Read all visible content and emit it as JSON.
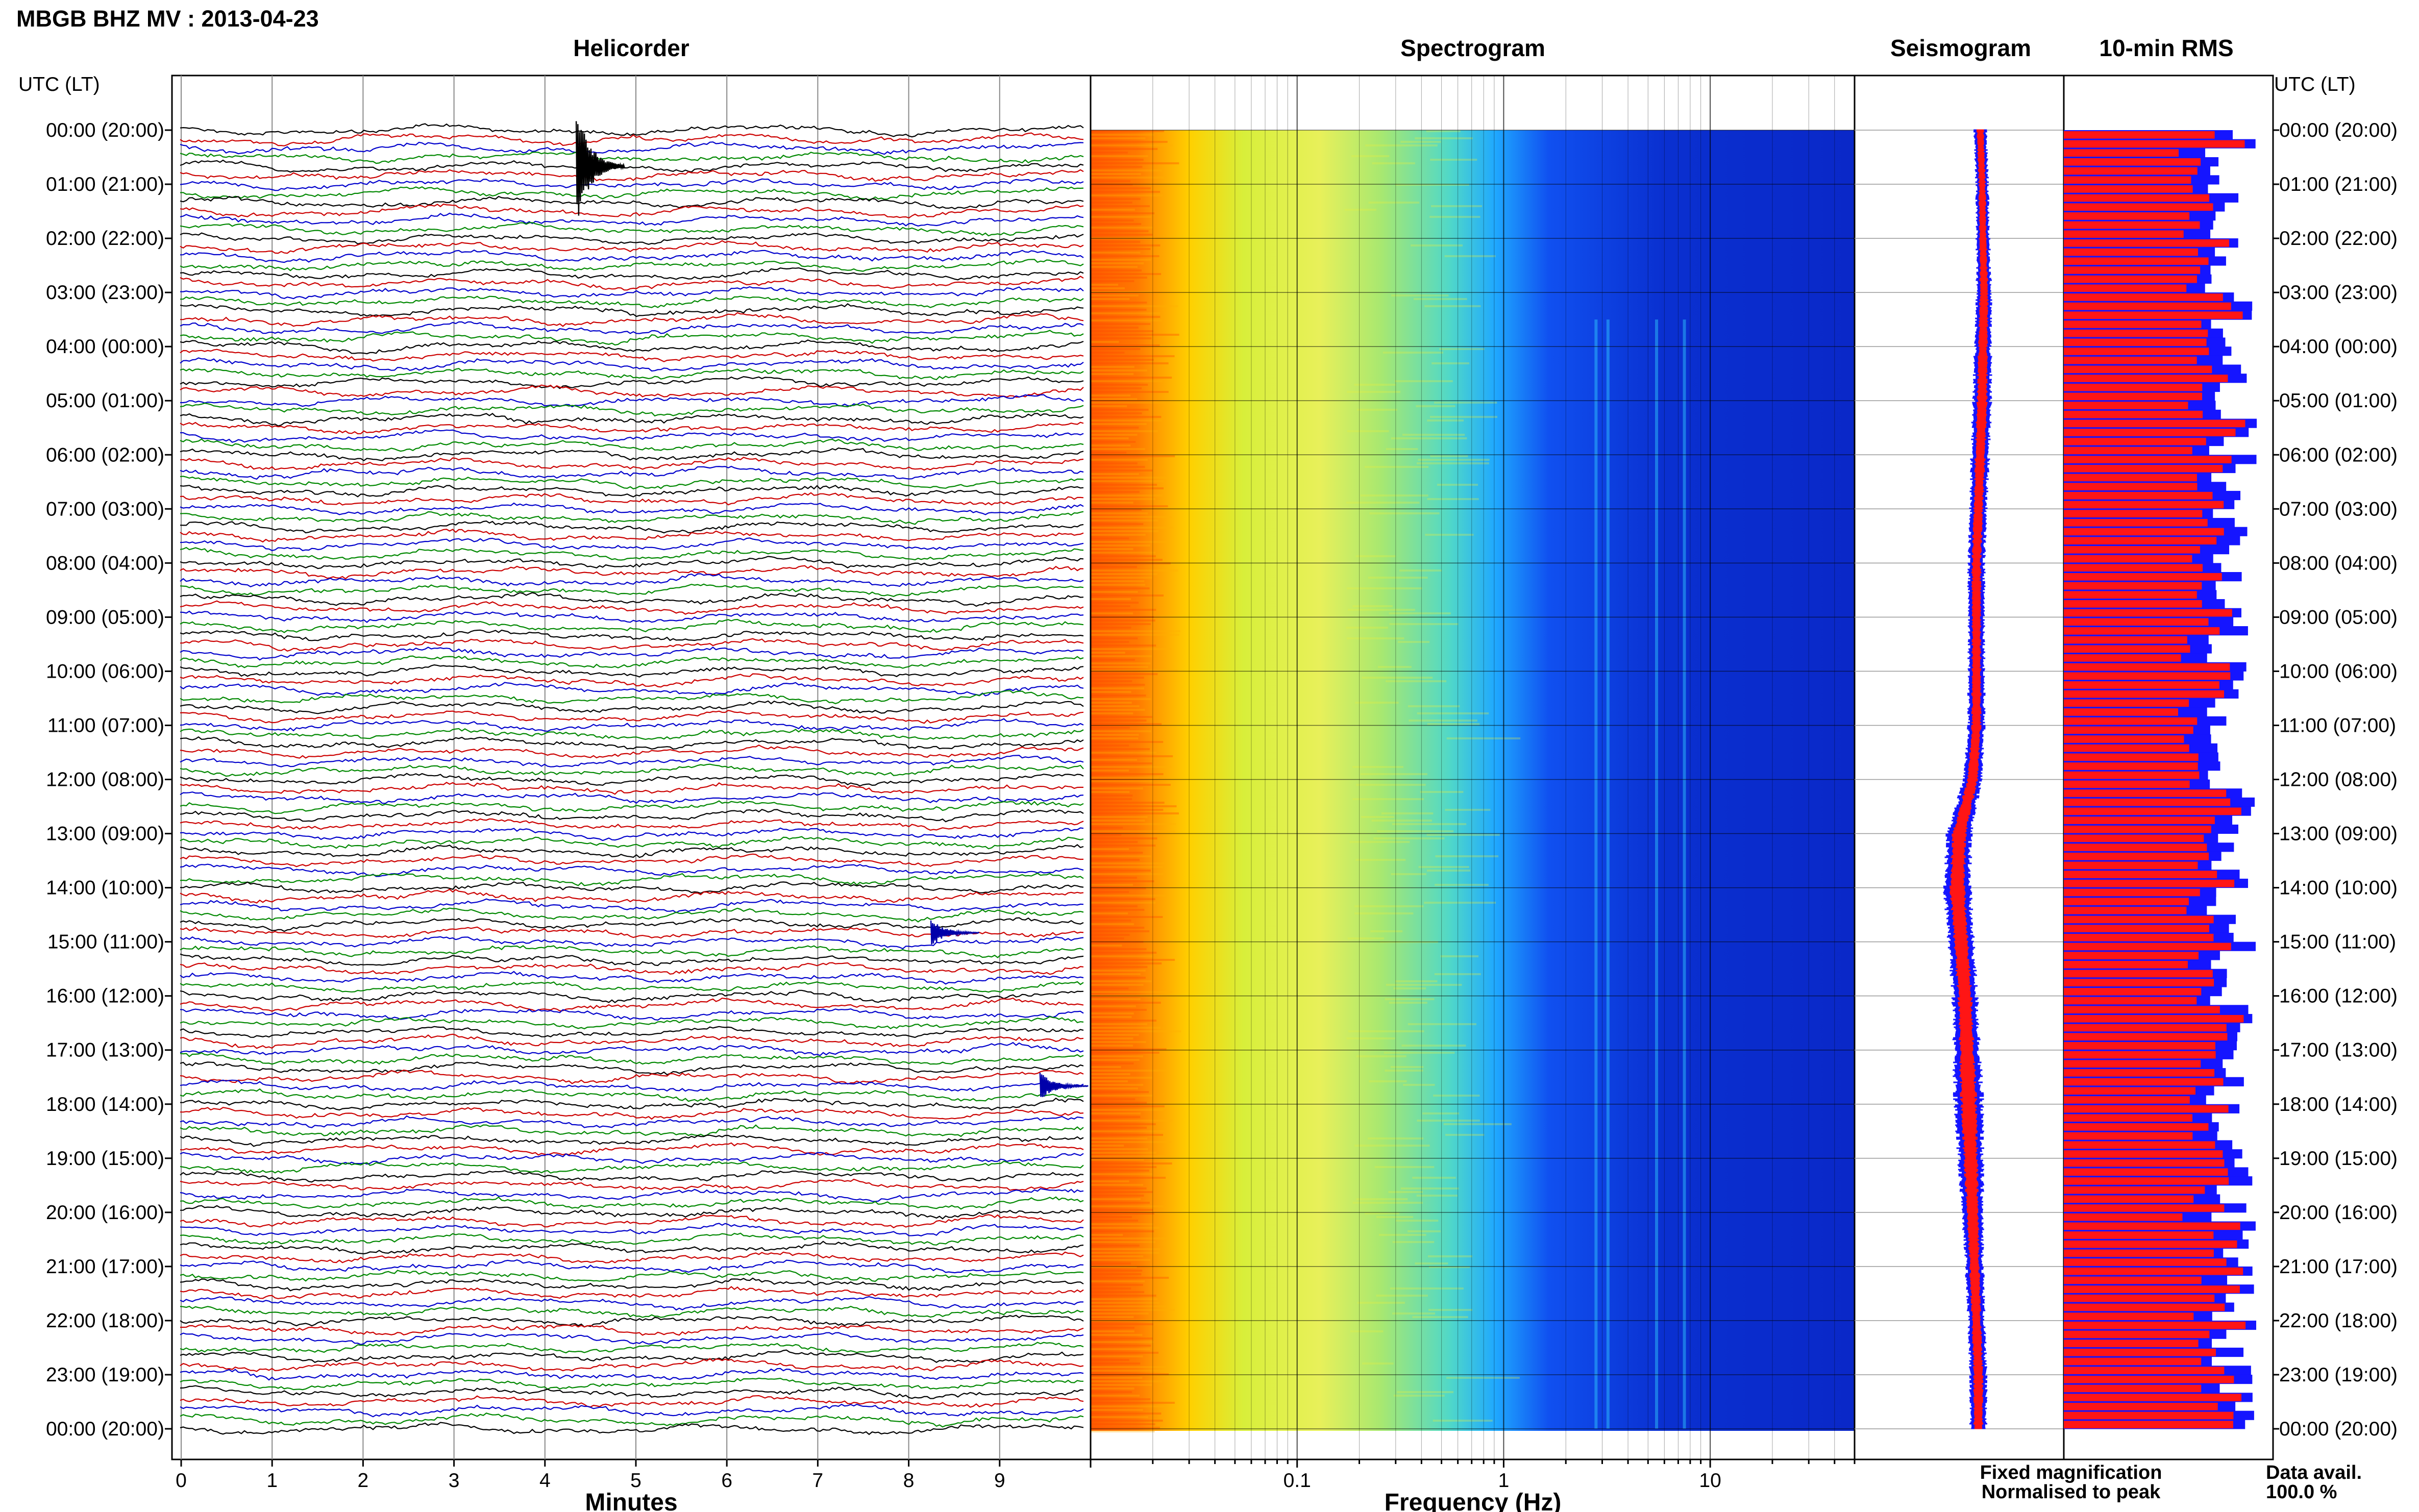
{
  "header": {
    "title": "MBGB BHZ MV : 2013-04-23"
  },
  "panels": {
    "helicorder": "Helicorder",
    "spectrogram": "Spectrogram",
    "seismogram": "Seismogram",
    "rms": "10-min RMS"
  },
  "axis_labels": {
    "utc_left": "UTC (LT)",
    "utc_right": "UTC (LT)",
    "helicorder_x": "Minutes",
    "spectrogram_x": "Frequency (Hz)"
  },
  "legend": {
    "fixed": "Fixed magnification",
    "normalised": "Normalised to peak",
    "fixed_color": "#1515ff",
    "normalised_color": "#ff1515"
  },
  "data_availability": {
    "label": "Data avail.",
    "value": "100.0 %"
  },
  "chart_data": [
    {
      "type": "line",
      "panel": "helicorder",
      "xlabel": "Minutes",
      "x_ticks": [
        "0",
        "1",
        "2",
        "3",
        "4",
        "5",
        "6",
        "7",
        "8",
        "9"
      ],
      "xlim": [
        0,
        10
      ],
      "y_ticks": [
        "00:00 (20:00)",
        "01:00 (21:00)",
        "02:00 (22:00)",
        "03:00 (23:00)",
        "04:00 (00:00)",
        "05:00 (01:00)",
        "06:00 (02:00)",
        "07:00 (03:00)",
        "08:00 (04:00)",
        "09:00 (05:00)",
        "10:00 (06:00)",
        "11:00 (07:00)",
        "12:00 (08:00)",
        "13:00 (09:00)",
        "14:00 (10:00)",
        "15:00 (11:00)",
        "16:00 (12:00)",
        "17:00 (13:00)",
        "18:00 (14:00)",
        "19:00 (15:00)",
        "20:00 (16:00)",
        "21:00 (17:00)",
        "22:00 (18:00)",
        "23:00 (19:00)",
        "00:00 (20:00)"
      ],
      "lines_per_hour": 6,
      "trace_colors": [
        "#000000",
        "#cc0000",
        "#0000cc",
        "#008800"
      ],
      "events": [
        {
          "time": "00:40",
          "minute": 4.4,
          "amplitude": "large"
        },
        {
          "time": "14:50",
          "minute": 8.3,
          "amplitude": "small"
        },
        {
          "time": "17:40",
          "minute": 9.5,
          "amplitude": "small"
        }
      ]
    },
    {
      "type": "heatmap",
      "panel": "spectrogram",
      "xlabel": "Frequency (Hz)",
      "x_scale": "log",
      "x_ticks": [
        "0.1",
        "1",
        "10"
      ],
      "xlim": [
        0.01,
        50
      ],
      "colormap": "jet",
      "bands": [
        {
          "from_hz": 0.01,
          "to_hz": 0.05,
          "level": "high"
        },
        {
          "from_hz": 0.05,
          "to_hz": 0.15,
          "level": "medium-high"
        },
        {
          "from_hz": 0.15,
          "to_hz": 1.5,
          "level": "medium"
        },
        {
          "from_hz": 1.5,
          "to_hz": 3.0,
          "level": "low"
        },
        {
          "from_hz": 3.0,
          "to_hz": 50,
          "level": "very low"
        }
      ],
      "notable_lines_hz": [
        2.8,
        3.2,
        5.5,
        7.5
      ]
    },
    {
      "type": "line",
      "panel": "seismogram",
      "series": [
        {
          "name": "Fixed magnification",
          "color": "#1515ff"
        },
        {
          "name": "Normalised to peak",
          "color": "#ff1515"
        }
      ],
      "hours": [
        0,
        1,
        2,
        3,
        4,
        5,
        6,
        7,
        8,
        9,
        10,
        11,
        12,
        13,
        14,
        15,
        16,
        17,
        18,
        19,
        20,
        21,
        22,
        23,
        24
      ],
      "center_offset": [
        0.55,
        0.6,
        0.62,
        0.65,
        0.62,
        0.6,
        0.55,
        0.5,
        0.45,
        0.45,
        0.45,
        0.45,
        0.35,
        0.0,
        -0.05,
        0.05,
        0.15,
        0.2,
        0.25,
        0.3,
        0.35,
        0.4,
        0.45,
        0.5,
        0.5
      ],
      "spread": [
        0.15,
        0.15,
        0.16,
        0.18,
        0.2,
        0.22,
        0.22,
        0.2,
        0.2,
        0.2,
        0.2,
        0.2,
        0.22,
        0.3,
        0.32,
        0.3,
        0.3,
        0.32,
        0.34,
        0.3,
        0.25,
        0.22,
        0.2,
        0.2,
        0.2
      ]
    },
    {
      "type": "bar",
      "panel": "rms",
      "orientation": "horizontal",
      "interval_minutes": 10,
      "count": 144,
      "series": [
        {
          "name": "Fixed magnification",
          "color": "#1515ff"
        },
        {
          "name": "Normalised to peak",
          "color": "#ff1515"
        }
      ],
      "typical_fraction": 0.8,
      "range_fraction": [
        0.55,
        1.0
      ]
    }
  ]
}
